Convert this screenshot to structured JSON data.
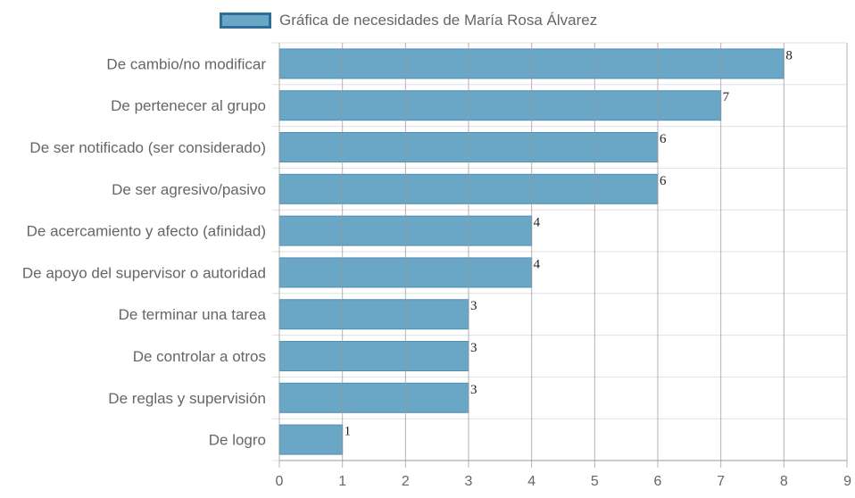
{
  "chart_data": {
    "type": "bar",
    "orientation": "horizontal",
    "categories": [
      "De cambio/no modificar",
      "De pertenecer al grupo",
      "De ser notificado (ser considerado)",
      "De ser agresivo/pasivo",
      "De acercamiento y afecto (afinidad)",
      "De apoyo del supervisor o autoridad",
      "De terminar una tarea",
      "De controlar a otros",
      "De reglas y supervisión",
      "De logro"
    ],
    "series": [
      {
        "name": "Gráfica de necesidades de María Rosa Álvarez",
        "values": [
          8,
          7,
          6,
          6,
          4,
          4,
          3,
          3,
          3,
          1
        ]
      }
    ],
    "xlim": [
      0,
      9
    ],
    "xticks": [
      0,
      1,
      2,
      3,
      4,
      5,
      6,
      7,
      8,
      9
    ],
    "grid": true,
    "legend_position": "top",
    "data_labels": true,
    "colors": {
      "bar_fill": "#6aa6c6",
      "bar_stroke": "#4f8fb4",
      "legend_border": "#2e6f9a",
      "grid": "#e0e0e0",
      "grid_vertical": "#9a9a9a"
    }
  }
}
